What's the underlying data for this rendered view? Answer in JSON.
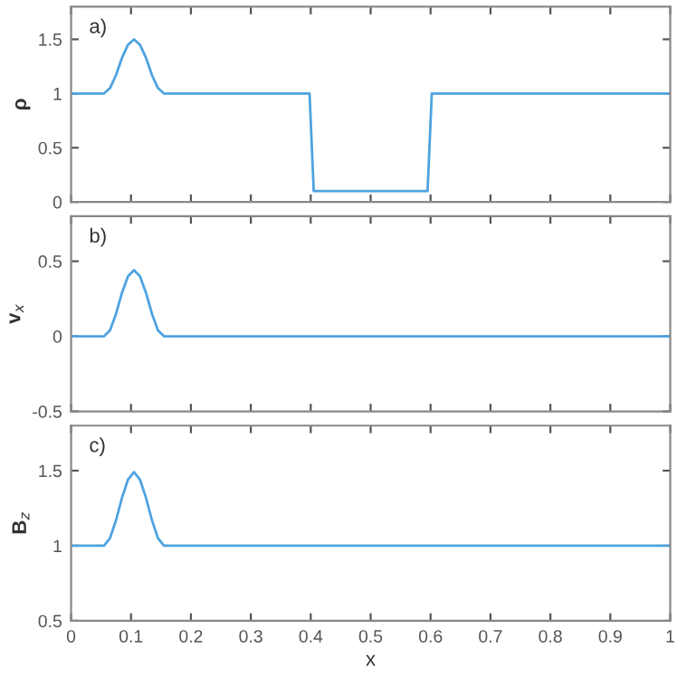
{
  "chart_data": [
    {
      "type": "line",
      "ylabel": "ρ",
      "annotations": [
        "a)"
      ],
      "x": [
        0,
        0.055,
        0.065,
        0.075,
        0.085,
        0.095,
        0.105,
        0.115,
        0.125,
        0.135,
        0.145,
        0.155,
        0.398,
        0.405,
        0.595,
        0.602,
        1
      ],
      "series": [
        {
          "color": "#4ea3e0",
          "values": [
            1,
            1,
            1.05,
            1.17,
            1.33,
            1.45,
            1.5,
            1.45,
            1.33,
            1.17,
            1.05,
            1,
            1,
            0.1,
            0.1,
            1,
            1
          ]
        }
      ],
      "xlim": [
        0,
        1
      ],
      "xticks": [
        0,
        0.1,
        0.2,
        0.3,
        0.4,
        0.5,
        0.6,
        0.7,
        0.8,
        0.9,
        1
      ],
      "ylim": [
        0,
        1.8
      ],
      "yticks": [
        0,
        0.5,
        1,
        1.5
      ],
      "tick_labels": "y",
      "grid": false,
      "legend": false
    },
    {
      "type": "line",
      "ylabel": "v$_{x}$",
      "annotations": [
        "b)"
      ],
      "x": [
        0,
        0.055,
        0.065,
        0.075,
        0.085,
        0.095,
        0.105,
        0.115,
        0.125,
        0.135,
        0.145,
        0.155,
        1
      ],
      "series": [
        {
          "color": "#4ea3e0",
          "values": [
            0,
            0,
            0.04,
            0.15,
            0.29,
            0.4,
            0.44,
            0.4,
            0.29,
            0.15,
            0.04,
            0,
            0
          ]
        }
      ],
      "xlim": [
        0,
        1
      ],
      "xticks": [
        0,
        0.1,
        0.2,
        0.3,
        0.4,
        0.5,
        0.6,
        0.7,
        0.8,
        0.9,
        1
      ],
      "ylim": [
        -0.5,
        0.8
      ],
      "yticks": [
        -0.5,
        0,
        0.5
      ],
      "tick_labels": "y",
      "grid": false,
      "legend": false
    },
    {
      "type": "line",
      "xlabel": "x",
      "ylabel": "B$_{z}$",
      "annotations": [
        "c)"
      ],
      "x": [
        0,
        0.055,
        0.065,
        0.075,
        0.085,
        0.095,
        0.105,
        0.115,
        0.125,
        0.135,
        0.145,
        0.155,
        1
      ],
      "series": [
        {
          "color": "#4ea3e0",
          "values": [
            1,
            1,
            1.05,
            1.17,
            1.32,
            1.44,
            1.49,
            1.44,
            1.32,
            1.17,
            1.05,
            1,
            1
          ]
        }
      ],
      "xlim": [
        0,
        1
      ],
      "xticks": [
        0,
        0.1,
        0.2,
        0.3,
        0.4,
        0.5,
        0.6,
        0.7,
        0.8,
        0.9,
        1
      ],
      "ylim": [
        0.5,
        1.8
      ],
      "yticks": [
        0.5,
        1,
        1.5
      ],
      "grid": false,
      "legend": false
    }
  ]
}
